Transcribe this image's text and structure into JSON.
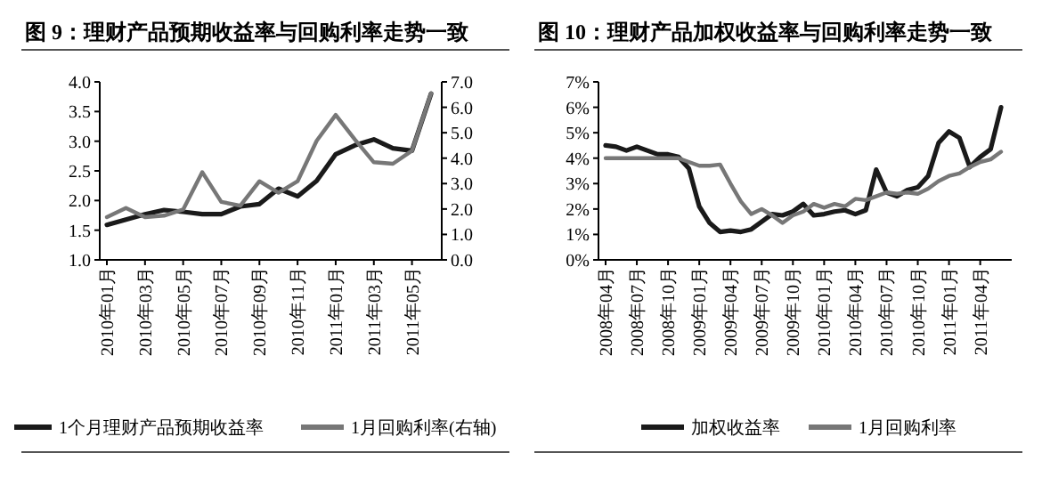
{
  "chart_data": [
    {
      "type": "line",
      "title": "图 9：理财产品预期收益率与回购利率走势一致",
      "categories": [
        "2010年01月",
        null,
        "2010年03月",
        null,
        "2010年05月",
        null,
        "2010年07月",
        null,
        "2010年09月",
        null,
        "2010年11月",
        null,
        "2011年01月",
        null,
        "2011年03月",
        null,
        "2011年05月",
        null
      ],
      "series": [
        {
          "name": "1个月理财产品预期收益率",
          "color": "#1a1a1a",
          "values": [
            1.59,
            1.68,
            1.77,
            1.84,
            1.81,
            1.77,
            1.77,
            1.9,
            1.94,
            2.2,
            2.07,
            2.33,
            2.78,
            2.93,
            3.03,
            2.88,
            2.84,
            3.8
          ]
        },
        {
          "name": "1月回购利率(右轴)",
          "color": "#777777",
          "axis": "y2",
          "values": [
            1.68,
            2.04,
            1.68,
            1.74,
            1.98,
            3.45,
            2.28,
            2.13,
            3.09,
            2.64,
            3.09,
            4.68,
            5.7,
            4.74,
            3.84,
            3.78,
            4.29,
            6.55
          ]
        }
      ],
      "ylim": [
        1,
        4
      ],
      "yticks": [
        {
          "value": 1,
          "label": "1.0"
        },
        {
          "value": 1.5,
          "label": "1.5"
        },
        {
          "value": 2,
          "label": "2.0"
        },
        {
          "value": 2.5,
          "label": "2.5"
        },
        {
          "value": 3,
          "label": "3.0"
        },
        {
          "value": 3.5,
          "label": "3.5"
        },
        {
          "value": 4,
          "label": "4.0"
        }
      ],
      "y2lim": [
        0,
        7
      ],
      "y2ticks": [
        {
          "value": 0,
          "label": "0.0"
        },
        {
          "value": 1,
          "label": "1.0"
        },
        {
          "value": 2,
          "label": "2.0"
        },
        {
          "value": 3,
          "label": "3.0"
        },
        {
          "value": 4,
          "label": "4.0"
        },
        {
          "value": 5,
          "label": "5.0"
        },
        {
          "value": 6,
          "label": "6.0"
        },
        {
          "value": 7,
          "label": "7.0"
        }
      ],
      "legend": "bottom"
    },
    {
      "type": "line",
      "title": "图 10：理财产品加权收益率与回购利率走势一致",
      "categories": [
        "2008年04月",
        null,
        null,
        "2008年07月",
        null,
        null,
        "2008年10月",
        null,
        null,
        "2009年01月",
        null,
        null,
        "2009年04月",
        null,
        null,
        "2009年07月",
        null,
        null,
        "2009年10月",
        null,
        null,
        "2010年01月",
        null,
        null,
        "2010年04月",
        null,
        null,
        "2010年07月",
        null,
        null,
        "2010年10月",
        null,
        null,
        "2011年01月",
        null,
        null,
        "2011年04月",
        null,
        null
      ],
      "series": [
        {
          "name": "加权收益率",
          "color": "#1a1a1a",
          "values": [
            4.5,
            4.45,
            4.3,
            4.45,
            4.3,
            4.15,
            4.15,
            4.05,
            3.6,
            2.1,
            1.45,
            1.1,
            1.15,
            1.1,
            1.2,
            1.5,
            1.8,
            1.75,
            1.9,
            2.2,
            1.75,
            1.8,
            1.9,
            1.95,
            1.8,
            1.95,
            3.55,
            2.65,
            2.5,
            2.75,
            2.85,
            3.3,
            4.6,
            5.05,
            4.8,
            3.65,
            4.05,
            4.35,
            6.0
          ]
        },
        {
          "name": "1月回购利率",
          "color": "#777777",
          "values": [
            4.0,
            4.0,
            4.0,
            4.0,
            4.0,
            4.0,
            4.0,
            4.0,
            3.85,
            3.7,
            3.7,
            3.75,
            3.0,
            2.3,
            1.8,
            2.0,
            1.75,
            1.45,
            1.75,
            1.9,
            2.2,
            2.05,
            2.2,
            2.1,
            2.4,
            2.35,
            2.5,
            2.65,
            2.6,
            2.65,
            2.6,
            2.8,
            3.1,
            3.3,
            3.4,
            3.65,
            3.85,
            3.95,
            4.25
          ]
        }
      ],
      "ylim": [
        0,
        7
      ],
      "yticks": [
        {
          "value": 0,
          "label": "0%"
        },
        {
          "value": 1,
          "label": "1%"
        },
        {
          "value": 2,
          "label": "2%"
        },
        {
          "value": 3,
          "label": "3%"
        },
        {
          "value": 4,
          "label": "4%"
        },
        {
          "value": 5,
          "label": "5%"
        },
        {
          "value": 6,
          "label": "6%"
        },
        {
          "value": 7,
          "label": "7%"
        }
      ],
      "legend": "bottom"
    }
  ]
}
